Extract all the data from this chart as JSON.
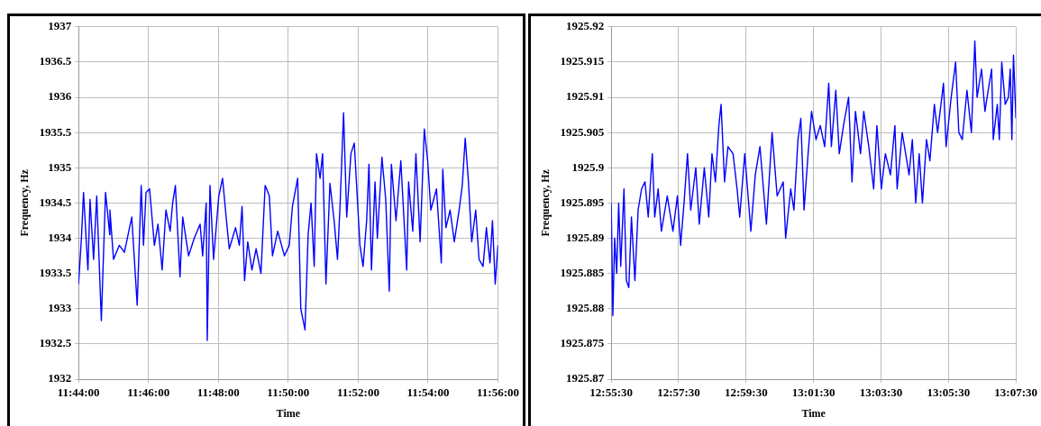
{
  "chart_data": [
    {
      "type": "line",
      "xlabel": "Time",
      "ylabel": "Frequency, Hz",
      "grid": true,
      "xlim": [
        11.73333,
        11.93333
      ],
      "xticks": [
        {
          "value": 11.73333,
          "label": "11:44:00"
        },
        {
          "value": 11.76667,
          "label": "11:46:00"
        },
        {
          "value": 11.8,
          "label": "11:48:00"
        },
        {
          "value": 11.83333,
          "label": "11:50:00"
        },
        {
          "value": 11.86667,
          "label": "11:52:00"
        },
        {
          "value": 11.9,
          "label": "11:54:00"
        },
        {
          "value": 11.93333,
          "label": "11:56:00"
        }
      ],
      "ylim": [
        1932,
        1937
      ],
      "yticks": [
        1932,
        1932.5,
        1933,
        1933.5,
        1934,
        1934.5,
        1935,
        1935.5,
        1936,
        1936.5,
        1937
      ],
      "x": [
        11.73333,
        11.7347,
        11.7357,
        11.7378,
        11.7388,
        11.7405,
        11.742,
        11.7442,
        11.7462,
        11.7482,
        11.7483,
        11.75,
        11.7528,
        11.7552,
        11.7587,
        11.7613,
        11.7632,
        11.7643,
        11.7655,
        11.7672,
        11.7695,
        11.7712,
        11.7732,
        11.775,
        11.777,
        11.7782,
        11.7795,
        11.7817,
        11.783,
        11.7858,
        11.7885,
        11.7913,
        11.7925,
        11.7942,
        11.7947,
        11.796,
        11.7977,
        11.8002,
        11.802,
        11.8037,
        11.8052,
        11.8082,
        11.81,
        11.8113,
        11.8125,
        11.814,
        11.816,
        11.818,
        11.8203,
        11.8223,
        11.8243,
        11.8258,
        11.8283,
        11.8315,
        11.8338,
        11.8353,
        11.8378,
        11.8393,
        11.8413,
        11.8428,
        11.8442,
        11.8457,
        11.8468,
        11.8485,
        11.8497,
        11.8513,
        11.8532,
        11.8552,
        11.8568,
        11.858,
        11.8597,
        11.8612,
        11.8632,
        11.8648,
        11.8675,
        11.869,
        11.8707,
        11.8718,
        11.873,
        11.8747,
        11.8758,
        11.878,
        11.8798,
        11.8815,
        11.8825,
        11.8847,
        11.887,
        11.8898,
        11.8907,
        11.8927,
        11.8942,
        11.8962,
        11.8982,
        11.8998,
        11.9013,
        11.904,
        11.9063,
        11.907,
        11.9085,
        11.9105,
        11.9125,
        11.9148,
        11.9163,
        11.9177,
        11.9192,
        11.9208,
        11.9227,
        11.9243,
        11.9262,
        11.9278,
        11.9295,
        11.9307,
        11.932,
        11.9333
      ],
      "series": [
        {
          "color": "#0000ff",
          "values": [
            1933.35,
            1934.0,
            1934.65,
            1933.55,
            1934.55,
            1933.7,
            1934.6,
            1932.83,
            1934.65,
            1934.05,
            1934.4,
            1933.7,
            1933.9,
            1933.8,
            1934.3,
            1933.05,
            1934.75,
            1933.9,
            1934.65,
            1934.7,
            1933.9,
            1934.2,
            1933.55,
            1934.4,
            1934.1,
            1934.5,
            1934.75,
            1933.45,
            1934.3,
            1933.75,
            1934.0,
            1934.2,
            1933.75,
            1934.5,
            1932.55,
            1934.75,
            1933.7,
            1934.6,
            1934.85,
            1934.3,
            1933.85,
            1934.15,
            1933.9,
            1934.45,
            1933.4,
            1933.95,
            1933.55,
            1933.85,
            1933.5,
            1934.75,
            1934.6,
            1933.75,
            1934.1,
            1933.75,
            1933.9,
            1934.45,
            1934.85,
            1933.0,
            1932.7,
            1934.05,
            1934.5,
            1933.6,
            1935.2,
            1934.85,
            1935.2,
            1933.35,
            1934.78,
            1934.25,
            1933.7,
            1934.45,
            1935.78,
            1934.3,
            1935.2,
            1935.35,
            1933.9,
            1933.6,
            1934.25,
            1935.05,
            1933.55,
            1934.8,
            1934.0,
            1935.15,
            1934.55,
            1933.25,
            1935.05,
            1934.25,
            1935.1,
            1933.55,
            1934.8,
            1934.1,
            1935.2,
            1933.95,
            1935.55,
            1935.1,
            1934.4,
            1934.7,
            1933.65,
            1934.98,
            1934.15,
            1934.4,
            1933.95,
            1934.4,
            1934.75,
            1935.42,
            1934.82,
            1933.95,
            1934.4,
            1933.7,
            1933.6,
            1934.15,
            1933.65,
            1934.25,
            1933.35,
            1933.9
          ]
        }
      ]
    },
    {
      "type": "line",
      "xlabel": "Time",
      "ylabel": "Frequency, Hz",
      "grid": true,
      "xlim": [
        12.925,
        13.125
      ],
      "xticks": [
        {
          "value": 12.925,
          "label": "12:55:30"
        },
        {
          "value": 12.95833,
          "label": "12:57:30"
        },
        {
          "value": 12.99167,
          "label": "12:59:30"
        },
        {
          "value": 13.025,
          "label": "13:01:30"
        },
        {
          "value": 13.05833,
          "label": "13:03:30"
        },
        {
          "value": 13.09167,
          "label": "13:05:30"
        },
        {
          "value": 13.125,
          "label": "13:07:30"
        }
      ],
      "ylim": [
        1925.87,
        1925.92
      ],
      "yticks": [
        1925.87,
        1925.875,
        1925.88,
        1925.885,
        1925.89,
        1925.895,
        1925.9,
        1925.905,
        1925.91,
        1925.915,
        1925.92
      ],
      "x": [
        12.925,
        12.9258,
        12.9267,
        12.9277,
        12.9287,
        12.9297,
        12.9313,
        12.9325,
        12.9337,
        12.935,
        12.9367,
        12.9383,
        12.94,
        12.9417,
        12.9433,
        12.9453,
        12.9465,
        12.9482,
        12.9498,
        12.9527,
        12.9555,
        12.9577,
        12.9593,
        12.961,
        12.9627,
        12.9643,
        12.9668,
        12.9685,
        12.971,
        12.9732,
        12.9748,
        12.9765,
        12.9782,
        12.9793,
        12.981,
        12.9827,
        12.9852,
        12.9872,
        12.9885,
        12.991,
        12.994,
        12.9962,
        12.9985,
        13.0017,
        13.0045,
        13.007,
        13.01,
        13.0112,
        13.0137,
        13.0153,
        13.0173,
        13.0187,
        13.0203,
        13.0223,
        13.024,
        13.0262,
        13.0283,
        13.0305,
        13.0325,
        13.0338,
        13.036,
        13.0377,
        13.0398,
        13.0423,
        13.044,
        13.0457,
        13.0482,
        13.0498,
        13.0523,
        13.0547,
        13.0563,
        13.0585,
        13.0605,
        13.063,
        13.0652,
        13.0663,
        13.0688,
        13.0722,
        13.0738,
        13.0755,
        13.0772,
        13.0788,
        13.0808,
        13.0825,
        13.0847,
        13.0863,
        13.0892,
        13.0905,
        13.093,
        13.0952,
        13.0968,
        13.0985,
        13.1008,
        13.103,
        13.1047,
        13.1058,
        13.108,
        13.1097,
        13.1113,
        13.113,
        13.1138,
        13.1158,
        13.1168,
        13.118,
        13.1197,
        13.1213,
        13.1222,
        13.123,
        13.1238,
        13.125
      ],
      "series": [
        {
          "color": "#0000ff",
          "values": [
            1925.895,
            1925.879,
            1925.89,
            1925.885,
            1925.895,
            1925.886,
            1925.897,
            1925.884,
            1925.883,
            1925.893,
            1925.884,
            1925.894,
            1925.897,
            1925.898,
            1925.893,
            1925.902,
            1925.893,
            1925.897,
            1925.891,
            1925.896,
            1925.891,
            1925.896,
            1925.889,
            1925.895,
            1925.902,
            1925.894,
            1925.9,
            1925.892,
            1925.9,
            1925.893,
            1925.902,
            1925.898,
            1925.906,
            1925.909,
            1925.898,
            1925.903,
            1925.902,
            1925.897,
            1925.893,
            1925.902,
            1925.891,
            1925.899,
            1925.903,
            1925.892,
            1925.905,
            1925.896,
            1925.898,
            1925.89,
            1925.897,
            1925.894,
            1925.904,
            1925.907,
            1925.894,
            1925.902,
            1925.908,
            1925.904,
            1925.906,
            1925.903,
            1925.912,
            1925.903,
            1925.911,
            1925.902,
            1925.906,
            1925.91,
            1925.898,
            1925.908,
            1925.902,
            1925.908,
            1925.903,
            1925.897,
            1925.906,
            1925.897,
            1925.902,
            1925.899,
            1925.906,
            1925.897,
            1925.905,
            1925.899,
            1925.904,
            1925.895,
            1925.902,
            1925.895,
            1925.904,
            1925.901,
            1925.909,
            1925.905,
            1925.912,
            1925.903,
            1925.91,
            1925.915,
            1925.905,
            1925.904,
            1925.911,
            1925.905,
            1925.918,
            1925.91,
            1925.914,
            1925.908,
            1925.911,
            1925.914,
            1925.904,
            1925.909,
            1925.904,
            1925.915,
            1925.909,
            1925.91,
            1925.914,
            1925.904,
            1925.916,
            1925.907
          ]
        }
      ]
    }
  ]
}
